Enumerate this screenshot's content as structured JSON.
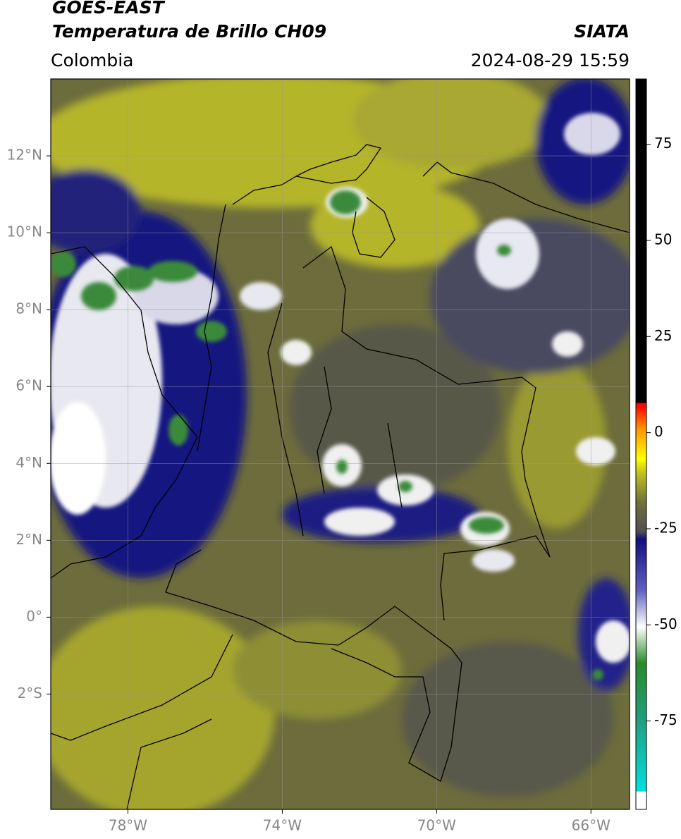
{
  "header": {
    "title": "GOES-EAST",
    "subtitle": "Temperatura de Brillo CH09",
    "region": "Colombia",
    "source": "SIATA",
    "datetime": "2024-08-29 15:59"
  },
  "map": {
    "xlim": [
      -80,
      -65
    ],
    "ylim": [
      -5,
      14
    ],
    "grid": true,
    "xticks": [
      {
        "value": -78,
        "label": "78°W"
      },
      {
        "value": -74,
        "label": "74°W"
      },
      {
        "value": -70,
        "label": "70°W"
      },
      {
        "value": -66,
        "label": "66°W"
      }
    ],
    "yticks": [
      {
        "value": 12,
        "label": "12°N"
      },
      {
        "value": 10,
        "label": "10°N"
      },
      {
        "value": 8,
        "label": "8°N"
      },
      {
        "value": 6,
        "label": "6°N"
      },
      {
        "value": 4,
        "label": "4°N"
      },
      {
        "value": 2,
        "label": "2°N"
      },
      {
        "value": 0,
        "label": "0°"
      },
      {
        "value": -2,
        "label": "2°S"
      }
    ]
  },
  "colorbar": {
    "lim": [
      -98,
      92
    ],
    "ticks": [
      75,
      50,
      25,
      0,
      -25,
      -50,
      -75
    ]
  }
}
